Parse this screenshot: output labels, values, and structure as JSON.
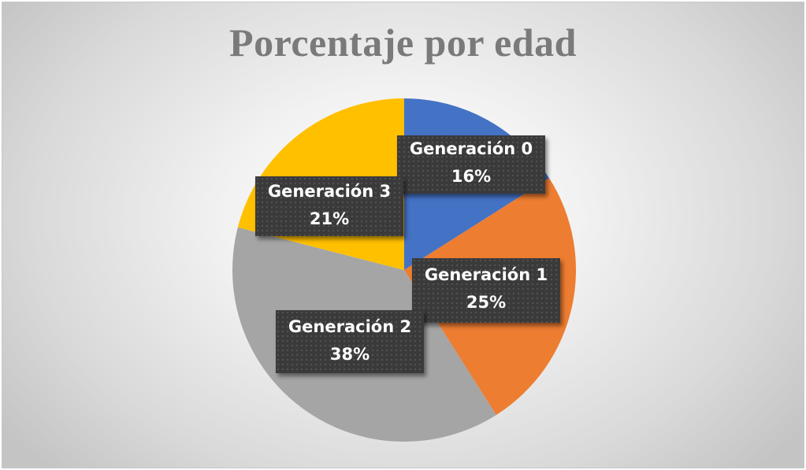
{
  "chart_data": {
    "type": "pie",
    "title": "Porcentaje por edad",
    "start_angle_deg": 0,
    "direction": "clockwise",
    "legend": "none",
    "slices": [
      {
        "label": "Generación 0",
        "value": 16,
        "value_text": "16%",
        "color": "#4472C4"
      },
      {
        "label": "Generación 1",
        "value": 25,
        "value_text": "25%",
        "color": "#ED7D31"
      },
      {
        "label": "Generación 2",
        "value": 38,
        "value_text": "38%",
        "color": "#A5A5A5"
      },
      {
        "label": "Generación 3",
        "value": 21,
        "value_text": "21%",
        "color": "#FFC000"
      }
    ]
  }
}
